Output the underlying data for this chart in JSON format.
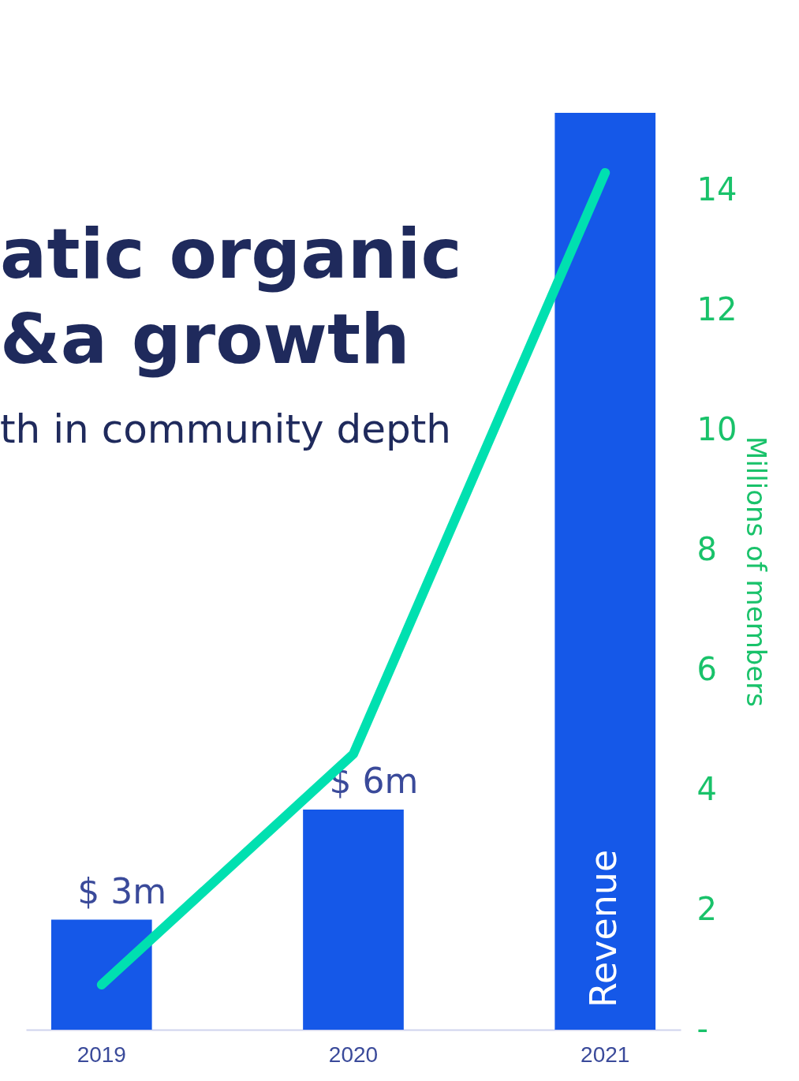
{
  "chart_data": {
    "type": "bar",
    "title": "atic organic\n&a growth",
    "subtitle": "th in community depth",
    "categories": [
      "2019",
      "2020",
      "2021"
    ],
    "y2label": "Millions of members",
    "ylim": [
      0,
      25
    ],
    "y2lim": [
      0,
      15.3
    ],
    "y2ticks": [
      {
        "value": 0,
        "label": "-"
      },
      2,
      4,
      6,
      8,
      10,
      12,
      14
    ],
    "grid": false,
    "series": [
      {
        "name": "Revenue",
        "color": "#1558e8",
        "values": [
          3,
          6,
          25
        ],
        "value_labels": [
          "$ 3m",
          "$ 6m",
          null
        ]
      },
      {
        "type": "line",
        "axis": "y2",
        "color": "#00e0b0",
        "values": [
          0.75,
          4.6,
          14.3
        ]
      }
    ]
  }
}
